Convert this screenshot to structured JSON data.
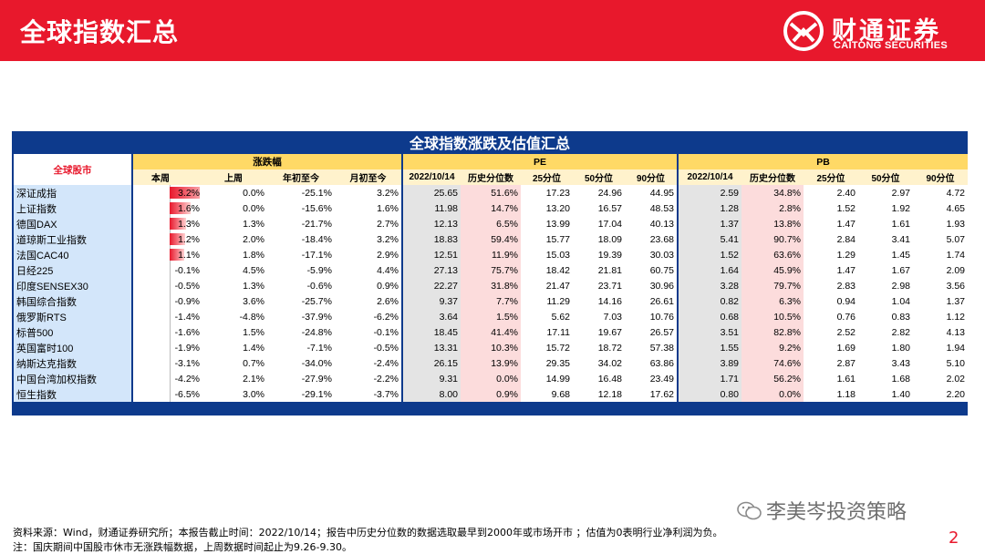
{
  "header": {
    "title": "全球指数汇总",
    "logo_cn": "财通证券",
    "logo_en": "CAITONG SECURITIES"
  },
  "table_title": "全球指数涨跌及估值汇总",
  "headers": {
    "corner": "全球股市",
    "group_change": "涨跌幅",
    "group_pe": "PE",
    "group_pb": "PB",
    "sub": [
      "本周",
      "上周",
      "年初至今",
      "月初至今",
      "2022/10/14",
      "历史分位数",
      "25分位",
      "50分位",
      "90分位",
      "2022/10/14",
      "历史分位数",
      "25分位",
      "50分位",
      "90分位"
    ]
  },
  "rows": [
    {
      "name": "深证成指",
      "week_pct": 3.2,
      "cells": [
        "3.2%",
        "0.0%",
        "-25.1%",
        "3.2%",
        "25.65",
        "51.6%",
        "17.23",
        "24.96",
        "44.95",
        "2.59",
        "34.8%",
        "2.40",
        "2.97",
        "4.72"
      ]
    },
    {
      "name": "上证指数",
      "week_pct": 1.6,
      "cells": [
        "1.6%",
        "0.0%",
        "-15.6%",
        "1.6%",
        "11.98",
        "14.7%",
        "13.20",
        "16.57",
        "48.53",
        "1.28",
        "2.8%",
        "1.52",
        "1.92",
        "4.65"
      ]
    },
    {
      "name": "德国DAX",
      "week_pct": 1.3,
      "cells": [
        "1.3%",
        "1.3%",
        "-21.7%",
        "2.7%",
        "12.13",
        "6.5%",
        "13.99",
        "17.04",
        "40.13",
        "1.37",
        "13.8%",
        "1.47",
        "1.61",
        "1.93"
      ]
    },
    {
      "name": "道琼斯工业指数",
      "week_pct": 1.2,
      "cells": [
        "1.2%",
        "2.0%",
        "-18.4%",
        "3.2%",
        "18.83",
        "59.4%",
        "15.77",
        "18.09",
        "23.68",
        "5.41",
        "90.7%",
        "2.84",
        "3.41",
        "5.07"
      ]
    },
    {
      "name": "法国CAC40",
      "week_pct": 1.1,
      "cells": [
        "1.1%",
        "1.8%",
        "-17.1%",
        "2.9%",
        "12.51",
        "11.9%",
        "15.03",
        "19.39",
        "30.03",
        "1.52",
        "63.6%",
        "1.29",
        "1.45",
        "1.74"
      ]
    },
    {
      "name": "日经225",
      "week_pct": -0.1,
      "cells": [
        "-0.1%",
        "4.5%",
        "-5.9%",
        "4.4%",
        "27.13",
        "75.7%",
        "18.42",
        "21.81",
        "60.75",
        "1.64",
        "45.9%",
        "1.47",
        "1.67",
        "2.09"
      ]
    },
    {
      "name": "印度SENSEX30",
      "week_pct": -0.5,
      "cells": [
        "-0.5%",
        "1.3%",
        "-0.6%",
        "0.9%",
        "22.27",
        "31.8%",
        "21.47",
        "23.71",
        "30.96",
        "3.28",
        "79.7%",
        "2.83",
        "2.98",
        "3.56"
      ]
    },
    {
      "name": "韩国综合指数",
      "week_pct": -0.9,
      "cells": [
        "-0.9%",
        "3.6%",
        "-25.7%",
        "2.6%",
        "9.37",
        "7.7%",
        "11.29",
        "14.16",
        "26.61",
        "0.82",
        "6.3%",
        "0.94",
        "1.04",
        "1.37"
      ]
    },
    {
      "name": "俄罗斯RTS",
      "week_pct": -1.4,
      "cells": [
        "-1.4%",
        "-4.8%",
        "-37.9%",
        "-6.2%",
        "3.64",
        "1.5%",
        "5.62",
        "7.03",
        "10.76",
        "0.68",
        "10.5%",
        "0.76",
        "0.83",
        "1.12"
      ]
    },
    {
      "name": "标普500",
      "week_pct": -1.6,
      "cells": [
        "-1.6%",
        "1.5%",
        "-24.8%",
        "-0.1%",
        "18.45",
        "41.4%",
        "17.11",
        "19.67",
        "26.57",
        "3.51",
        "82.8%",
        "2.52",
        "2.82",
        "4.13"
      ]
    },
    {
      "name": "英国富时100",
      "week_pct": -1.9,
      "cells": [
        "-1.9%",
        "1.4%",
        "-7.1%",
        "-0.5%",
        "13.31",
        "10.3%",
        "15.72",
        "18.72",
        "57.38",
        "1.55",
        "9.2%",
        "1.69",
        "1.80",
        "1.94"
      ]
    },
    {
      "name": "纳斯达克指数",
      "week_pct": -3.1,
      "cells": [
        "-3.1%",
        "0.7%",
        "-34.0%",
        "-2.4%",
        "26.15",
        "13.9%",
        "29.35",
        "34.02",
        "63.86",
        "3.89",
        "74.6%",
        "2.87",
        "3.43",
        "5.10"
      ]
    },
    {
      "name": "中国台湾加权指数",
      "week_pct": -4.2,
      "cells": [
        "-4.2%",
        "2.1%",
        "-27.9%",
        "-2.2%",
        "9.31",
        "0.0%",
        "14.99",
        "16.48",
        "23.49",
        "1.71",
        "56.2%",
        "1.61",
        "1.68",
        "2.02"
      ]
    },
    {
      "name": "恒生指数",
      "week_pct": -6.5,
      "cells": [
        "-6.5%",
        "3.0%",
        "-29.1%",
        "-3.7%",
        "8.00",
        "0.9%",
        "9.68",
        "12.18",
        "17.62",
        "0.80",
        "0.0%",
        "1.18",
        "1.40",
        "2.20"
      ]
    }
  ],
  "footer": {
    "source": "资料来源：Wind，财通证券研究所；本报告截止时间：2022/10/14；报告中历史分位数的数据选取最早到2000年或市场开市 ；估值为0表明行业净利润为负。",
    "note": "注：国庆期间中国股市休市无涨跌幅数据，上周数据时间起止为9.26-9.30。",
    "wechat": "李美岑投资策略",
    "page": "2"
  },
  "colors": {
    "brand_red": "#e8182c",
    "panel_blue": "#0d3a8c",
    "header_yellow": "#ffd966",
    "name_blue": "#d3e6fa",
    "pe_grey": "#e4e4e4",
    "pct_pink": "#fcdcdc"
  }
}
